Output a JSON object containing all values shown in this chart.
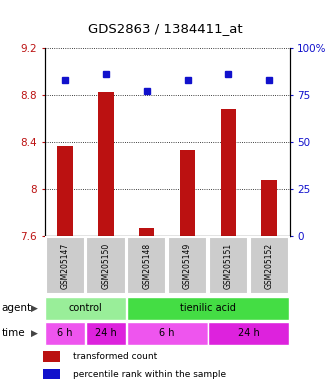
{
  "title": "GDS2863 / 1384411_at",
  "samples": [
    "GSM205147",
    "GSM205150",
    "GSM205148",
    "GSM205149",
    "GSM205151",
    "GSM205152"
  ],
  "bar_values": [
    8.37,
    8.83,
    7.67,
    8.33,
    8.68,
    8.08
  ],
  "dot_values": [
    83,
    86,
    77,
    83,
    86,
    83
  ],
  "ylim_left": [
    7.6,
    9.2
  ],
  "ylim_right": [
    0,
    100
  ],
  "yticks_left": [
    7.6,
    8.0,
    8.4,
    8.8,
    9.2
  ],
  "ytick_labels_left": [
    "7.6",
    "8",
    "8.4",
    "8.8",
    "9.2"
  ],
  "yticks_right": [
    0,
    25,
    50,
    75,
    100
  ],
  "ytick_labels_right": [
    "0",
    "25",
    "50",
    "75",
    "100%"
  ],
  "bar_color": "#bb1111",
  "dot_color": "#1111cc",
  "bar_bottom": 7.6,
  "agent_row": [
    {
      "label": "control",
      "start": 0,
      "end": 2,
      "color": "#99ee99"
    },
    {
      "label": "tienilic acid",
      "start": 2,
      "end": 6,
      "color": "#44dd44"
    }
  ],
  "time_row": [
    {
      "label": "6 h",
      "start": 0,
      "end": 1,
      "color": "#ee55ee"
    },
    {
      "label": "24 h",
      "start": 1,
      "end": 2,
      "color": "#dd22dd"
    },
    {
      "label": "6 h",
      "start": 2,
      "end": 4,
      "color": "#ee55ee"
    },
    {
      "label": "24 h",
      "start": 4,
      "end": 6,
      "color": "#dd22dd"
    }
  ],
  "agent_label": "agent",
  "time_label": "time",
  "legend_bar_label": "transformed count",
  "legend_dot_label": "percentile rank within the sample",
  "gsm_bg": "#cccccc"
}
